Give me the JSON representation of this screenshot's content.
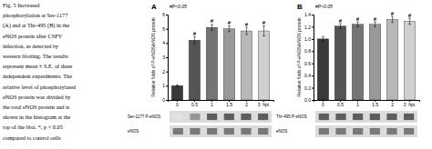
{
  "caption": [
    "Fig. 5  Increased",
    "phosphorylation at Ser-1177",
    "(A) and at Thr-495 (B) in the",
    "eNOS protein after CSFV",
    "infection, as detected by",
    "western blotting. The results",
    "represent mean ± S.E. of three",
    "independent experiments. The",
    "relative level of phosphorylated",
    "eNOS protein was divided by",
    "the total eNOS protein and is",
    "shown in the histogram at the",
    "top of the blot. *, p < 0.05",
    "compared to control cells"
  ],
  "chart_data": [
    {
      "type": "bar",
      "title": "A",
      "annotations": [
        "#P<0.05"
      ],
      "ylabel": "Relative folds of P-eNOS/eNOS protein",
      "categories": [
        "0",
        "0.5",
        "1",
        "1.5",
        "2",
        "3  hpi."
      ],
      "values": [
        1.0,
        4.2,
        5.1,
        5.0,
        4.85,
        4.85
      ],
      "errors": [
        0.05,
        0.25,
        0.2,
        0.2,
        0.25,
        0.35
      ],
      "colors": [
        "#3a3a3a",
        "#555555",
        "#757575",
        "#999999",
        "#b8b8b8",
        "#d0d0d0"
      ],
      "significance_labels": [
        null,
        "#",
        "#",
        "#",
        "#",
        "#"
      ],
      "ylim": [
        0,
        6
      ],
      "yticks": [
        0,
        1,
        2,
        3,
        4,
        5,
        6
      ],
      "blots": [
        {
          "label": "Ser-1177 P-eNOS",
          "values": [
            0.15,
            0.55,
            0.85,
            0.85,
            0.85,
            0.85
          ]
        },
        {
          "label": "eNOS",
          "values": [
            0.7,
            0.7,
            0.7,
            0.7,
            0.7,
            0.7
          ]
        }
      ]
    },
    {
      "type": "bar",
      "title": "B",
      "annotations": [
        "#P<0.05"
      ],
      "ylabel": "Relative folds of P-eNOS/eNOS protein",
      "categories": [
        "0",
        "0.5",
        "1",
        "1.5",
        "2",
        "3  hpi."
      ],
      "values": [
        1.0,
        1.21,
        1.24,
        1.24,
        1.32,
        1.29
      ],
      "errors": [
        0.04,
        0.04,
        0.04,
        0.04,
        0.05,
        0.05
      ],
      "colors": [
        "#3a3a3a",
        "#555555",
        "#757575",
        "#999999",
        "#b8b8b8",
        "#d0d0d0"
      ],
      "significance_labels": [
        null,
        "#",
        "#",
        "#",
        "#",
        "#"
      ],
      "ylim": [
        0,
        1.4
      ],
      "yticks": [
        {
          "value": 0.0,
          "label": "0.0"
        },
        0.2,
        0.4,
        0.6,
        0.8,
        {
          "value": 1.0,
          "label": "1.0"
        },
        1.2,
        1.4
      ],
      "blots": [
        {
          "label": "Thr-495 P-eNOS",
          "values": [
            0.85,
            0.85,
            0.85,
            0.85,
            0.85,
            0.85
          ]
        },
        {
          "label": "eNOS",
          "values": [
            0.7,
            0.7,
            0.7,
            0.7,
            0.7,
            0.7
          ]
        }
      ]
    }
  ]
}
